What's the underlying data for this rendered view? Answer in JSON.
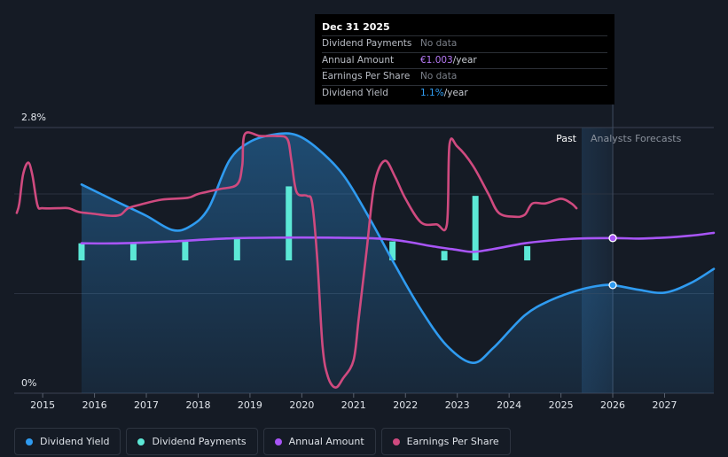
{
  "tooltip": {
    "date": "Dec 31 2025",
    "rows": [
      {
        "label": "Dividend Payments",
        "value": "No data",
        "unit": ""
      },
      {
        "label": "Annual Amount",
        "value": "€1.003",
        "unit": "/year"
      },
      {
        "label": "Earnings Per Share",
        "value": "No data",
        "unit": ""
      },
      {
        "label": "Dividend Yield",
        "value": "1.1%",
        "unit": "/year"
      }
    ]
  },
  "region_labels": {
    "past": "Past",
    "forecast": "Analysts Forecasts"
  },
  "legend": [
    {
      "label": "Dividend Yield",
      "color": "#2f9bf0"
    },
    {
      "label": "Dividend Payments",
      "color": "#5ce8d6"
    },
    {
      "label": "Annual Amount",
      "color": "#a855f7"
    },
    {
      "label": "Earnings Per Share",
      "color": "#cf4a7f"
    }
  ],
  "colors": {
    "background": "#151b25",
    "grid": "#2b3240",
    "dividend_yield": "#2f9bf0",
    "dividend_payments": "#5ce8d6",
    "annual_amount": "#a855f7",
    "earnings_per_share": "#cf4a7f"
  },
  "chart_data": {
    "type": "line",
    "x_axis": {
      "ticks": [
        "2015",
        "2016",
        "2017",
        "2018",
        "2019",
        "2020",
        "2021",
        "2022",
        "2023",
        "2024",
        "2025",
        "2026",
        "2027"
      ],
      "range": [
        2014.45,
        2027.95
      ]
    },
    "y_axis": {
      "tick_labels": [
        "2.8%",
        "0%"
      ],
      "range": [
        0,
        2.8
      ],
      "unit": "%"
    },
    "past_end": 2025.4,
    "forecast_end": 2026.0,
    "series": [
      {
        "name": "Dividend Yield",
        "key": "dividend_yield",
        "area": true,
        "points": [
          [
            2015.75,
            2.2
          ],
          [
            2016.5,
            2.0
          ],
          [
            2017.0,
            1.87
          ],
          [
            2017.5,
            1.72
          ],
          [
            2017.85,
            1.76
          ],
          [
            2018.2,
            1.95
          ],
          [
            2018.6,
            2.45
          ],
          [
            2019.0,
            2.65
          ],
          [
            2019.5,
            2.73
          ],
          [
            2019.9,
            2.72
          ],
          [
            2020.3,
            2.58
          ],
          [
            2020.8,
            2.3
          ],
          [
            2021.3,
            1.85
          ],
          [
            2021.8,
            1.35
          ],
          [
            2022.3,
            0.88
          ],
          [
            2022.8,
            0.5
          ],
          [
            2023.3,
            0.32
          ],
          [
            2023.7,
            0.48
          ],
          [
            2024.3,
            0.82
          ],
          [
            2024.8,
            0.98
          ],
          [
            2025.3,
            1.08
          ],
          [
            2025.7,
            1.13
          ],
          [
            2026.0,
            1.14
          ],
          [
            2026.5,
            1.09
          ],
          [
            2027.0,
            1.06
          ],
          [
            2027.5,
            1.16
          ],
          [
            2027.95,
            1.31
          ]
        ]
      },
      {
        "name": "Annual Amount",
        "key": "annual_amount",
        "points": [
          [
            2015.75,
            1.58
          ],
          [
            2016.5,
            1.58
          ],
          [
            2017.5,
            1.6
          ],
          [
            2018.5,
            1.63
          ],
          [
            2019.5,
            1.64
          ],
          [
            2020.5,
            1.64
          ],
          [
            2021.5,
            1.63
          ],
          [
            2022.0,
            1.6
          ],
          [
            2022.5,
            1.55
          ],
          [
            2023.0,
            1.51
          ],
          [
            2023.3,
            1.49
          ],
          [
            2023.7,
            1.52
          ],
          [
            2024.3,
            1.58
          ],
          [
            2024.8,
            1.61
          ],
          [
            2025.3,
            1.63
          ],
          [
            2026.0,
            1.635
          ],
          [
            2026.5,
            1.63
          ],
          [
            2027.0,
            1.64
          ],
          [
            2027.5,
            1.66
          ],
          [
            2027.95,
            1.69
          ]
        ]
      },
      {
        "name": "Earnings Per Share",
        "key": "earnings_per_share",
        "points": [
          [
            2014.5,
            1.9
          ],
          [
            2014.55,
            2.0
          ],
          [
            2014.62,
            2.3
          ],
          [
            2014.72,
            2.43
          ],
          [
            2014.8,
            2.3
          ],
          [
            2014.9,
            1.98
          ],
          [
            2015.0,
            1.95
          ],
          [
            2015.3,
            1.95
          ],
          [
            2015.5,
            1.95
          ],
          [
            2015.7,
            1.91
          ],
          [
            2016.0,
            1.89
          ],
          [
            2016.3,
            1.87
          ],
          [
            2016.5,
            1.88
          ],
          [
            2016.65,
            1.95
          ],
          [
            2016.9,
            1.99
          ],
          [
            2017.3,
            2.04
          ],
          [
            2017.8,
            2.06
          ],
          [
            2018.0,
            2.1
          ],
          [
            2018.4,
            2.15
          ],
          [
            2018.75,
            2.2
          ],
          [
            2018.85,
            2.4
          ],
          [
            2018.9,
            2.73
          ],
          [
            2019.2,
            2.71
          ],
          [
            2019.5,
            2.71
          ],
          [
            2019.72,
            2.68
          ],
          [
            2019.8,
            2.45
          ],
          [
            2019.9,
            2.12
          ],
          [
            2020.1,
            2.08
          ],
          [
            2020.2,
            2.0
          ],
          [
            2020.3,
            1.4
          ],
          [
            2020.4,
            0.5
          ],
          [
            2020.5,
            0.18
          ],
          [
            2020.65,
            0.06
          ],
          [
            2020.8,
            0.16
          ],
          [
            2021.0,
            0.35
          ],
          [
            2021.1,
            0.8
          ],
          [
            2021.25,
            1.5
          ],
          [
            2021.4,
            2.2
          ],
          [
            2021.6,
            2.45
          ],
          [
            2021.8,
            2.28
          ],
          [
            2022.0,
            2.05
          ],
          [
            2022.3,
            1.8
          ],
          [
            2022.6,
            1.78
          ],
          [
            2022.8,
            1.78
          ],
          [
            2022.85,
            2.62
          ],
          [
            2023.0,
            2.6
          ],
          [
            2023.3,
            2.4
          ],
          [
            2023.6,
            2.1
          ],
          [
            2023.8,
            1.9
          ],
          [
            2024.1,
            1.86
          ],
          [
            2024.3,
            1.88
          ],
          [
            2024.45,
            2.0
          ],
          [
            2024.7,
            2.0
          ],
          [
            2025.0,
            2.05
          ],
          [
            2025.2,
            2.0
          ],
          [
            2025.3,
            1.95
          ]
        ]
      }
    ],
    "bars": {
      "name": "Dividend Payments",
      "key": "dividend_payments",
      "base": 1.4,
      "points": [
        [
          2015.75,
          1.58
        ],
        [
          2016.75,
          1.58
        ],
        [
          2017.75,
          1.6
        ],
        [
          2018.75,
          1.63
        ],
        [
          2019.75,
          2.18
        ],
        [
          2021.75,
          1.6
        ],
        [
          2022.75,
          1.5
        ],
        [
          2023.35,
          2.08
        ],
        [
          2024.35,
          1.55
        ]
      ]
    },
    "markers": [
      {
        "series": "annual_amount",
        "x": 2026.0,
        "y": 1.635
      },
      {
        "series": "dividend_yield",
        "x": 2026.0,
        "y": 1.14
      }
    ]
  }
}
